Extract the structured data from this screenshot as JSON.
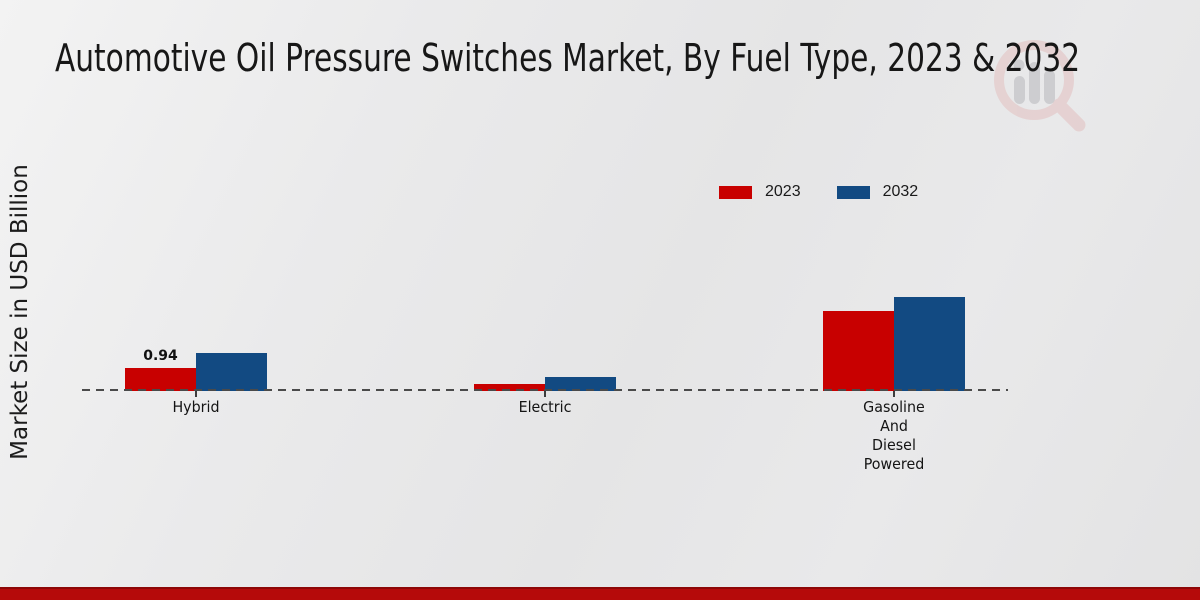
{
  "page": {
    "footer_color": "#b50a0a",
    "footer_edge_color": "#8e0707",
    "background_color": "#e8e8e9"
  },
  "watermark": {
    "icon": "magnifier-bar-chart-logo",
    "ring_color": "#e2bfbf",
    "bars_color": "#c9c9cc"
  },
  "chart_data": {
    "type": "bar",
    "title": "Automotive Oil Pressure Switches Market, By Fuel Type, 2023 & 2032",
    "ylabel": "Market Size in USD Billion",
    "xlabel": "",
    "categories": [
      "Hybrid",
      "Electric",
      "Gasoline And Diesel Powered"
    ],
    "category_label_lines": [
      [
        "Hybrid"
      ],
      [
        "Electric"
      ],
      [
        "Gasoline",
        "And",
        "Diesel",
        "Powered"
      ]
    ],
    "series": [
      {
        "name": "2023",
        "color": "#c80000",
        "values": [
          0.94,
          0.28,
          3.27
        ]
      },
      {
        "name": "2032",
        "color": "#124a82",
        "values": [
          1.55,
          0.56,
          3.84
        ]
      }
    ],
    "data_labels": [
      {
        "series_index": 0,
        "category_index": 0,
        "text": "0.94"
      }
    ],
    "legend_position": "top-right",
    "baseline_style": "dashed",
    "y_axis_ticks_visible": false,
    "grid": false
  }
}
